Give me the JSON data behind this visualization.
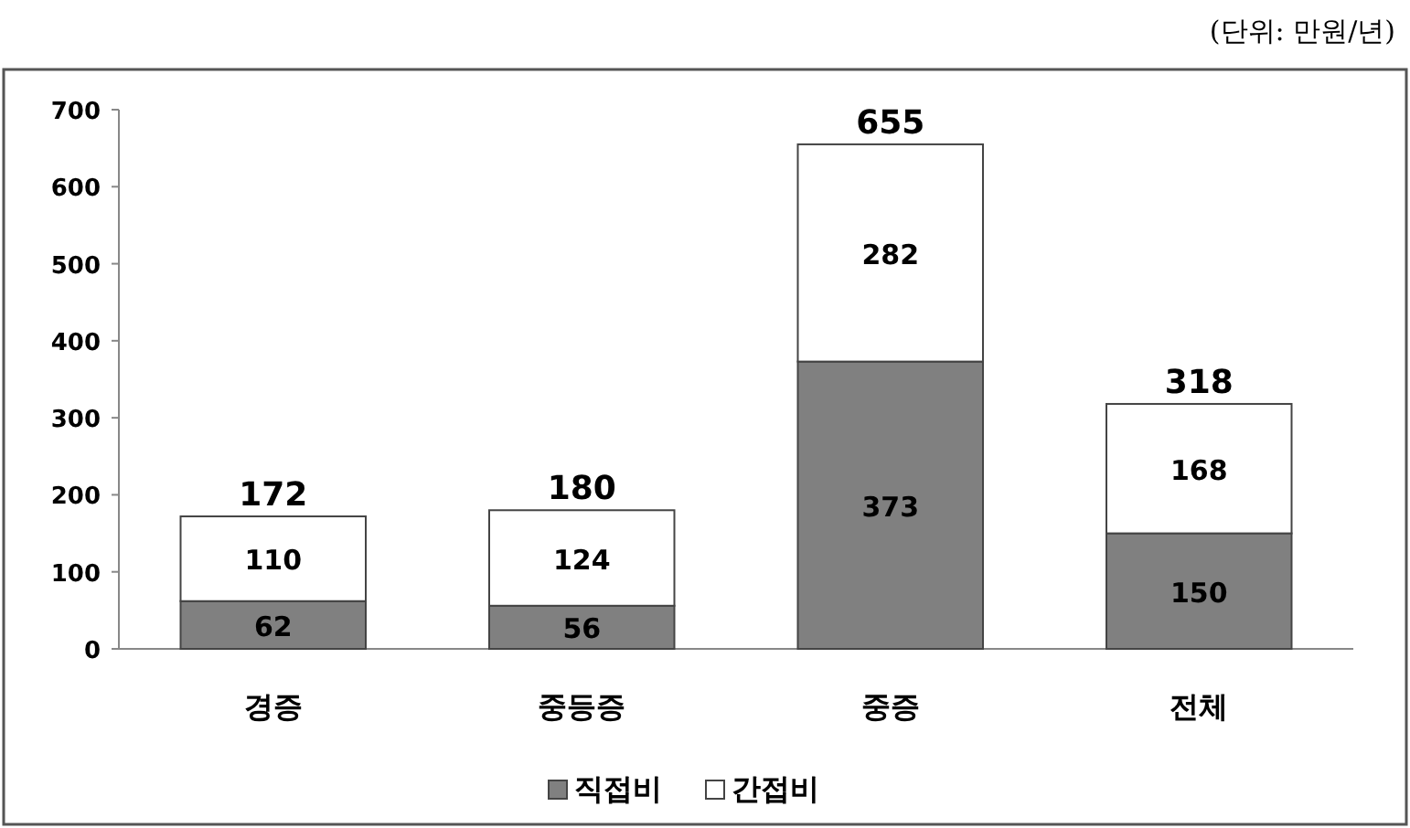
{
  "chart_data": {
    "type": "bar",
    "stacked": true,
    "categories": [
      "경증",
      "중등증",
      "중증",
      "전체"
    ],
    "series": [
      {
        "name": "직접비",
        "color": "#808080",
        "values": [
          62,
          56,
          373,
          150
        ]
      },
      {
        "name": "간접비",
        "color": "#ffffff",
        "values": [
          110,
          124,
          282,
          168
        ]
      }
    ],
    "totals": [
      "172",
      "180",
      "655",
      "318"
    ],
    "ylim": [
      0,
      700
    ],
    "yticks": [
      0,
      100,
      200,
      300,
      400,
      500,
      600,
      700
    ],
    "data_labels": true,
    "legend": "bottom",
    "grid": false,
    "annotations": [
      "(단위: 만원/년)"
    ]
  }
}
